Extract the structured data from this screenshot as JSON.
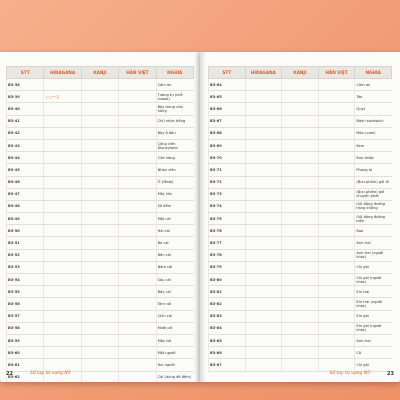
{
  "headers_left": [
    "STT",
    "HIRAGANA",
    "KANJI",
    "HÁN VIỆT",
    "NGHĨA"
  ],
  "headers_right": [
    "STT",
    "HIRAGANA",
    "KANJI",
    "HÁN VIỆT",
    "NGHĨA"
  ],
  "left_rows": [
    {
      "id": "B3-38",
      "hira": "",
      "kanji": "",
      "han": "",
      "vi": "Cảm ơn"
    },
    {
      "id": "B3-39",
      "hira": "ジュース",
      "kanji": "",
      "han": "",
      "vi": "Tương tự (chỗ coooo)"
    },
    {
      "id": "B3-40",
      "hira": "",
      "kanji": "",
      "han": "",
      "vi": "Bây trong cửa hàng"
    },
    {
      "id": "B3-41",
      "hira": "",
      "kanji": "",
      "han": "",
      "vi": "Chủ nhân tiếng"
    },
    {
      "id": "B3-42",
      "hira": "",
      "kanji": "",
      "han": "",
      "vi": "Bây ở đâu"
    },
    {
      "id": "B3-43",
      "hira": "",
      "kanji": "",
      "han": "",
      "vi": "Công viên Disneyland"
    },
    {
      "id": "B3-44",
      "hira": "",
      "kanji": "",
      "han": "",
      "vi": "Cửa hàng"
    },
    {
      "id": "B3-45",
      "hira": "",
      "kanji": "",
      "han": "",
      "vi": "Nhận viên"
    },
    {
      "id": "B3-46",
      "hira": "",
      "kanji": "",
      "han": "",
      "vi": "Ở (Nhật)"
    },
    {
      "id": "B3-47",
      "hira": "",
      "kanji": "",
      "han": "",
      "vi": "Mời, tốn"
    },
    {
      "id": "B3-48",
      "hira": "",
      "kanji": "",
      "han": "",
      "vi": "Số đếm"
    },
    {
      "id": "B3-49",
      "hira": "",
      "kanji": "",
      "han": "",
      "vi": "Một cái"
    },
    {
      "id": "B3-50",
      "hira": "",
      "kanji": "",
      "han": "",
      "vi": "Hai cái"
    },
    {
      "id": "B3-51",
      "hira": "",
      "kanji": "",
      "han": "",
      "vi": "Ba cái"
    },
    {
      "id": "B3-52",
      "hira": "",
      "kanji": "",
      "han": "",
      "vi": "Bốn cái"
    },
    {
      "id": "B3-53",
      "hira": "",
      "kanji": "",
      "han": "",
      "vi": "Năm cái"
    },
    {
      "id": "B3-54",
      "hira": "",
      "kanji": "",
      "han": "",
      "vi": "Sáu cái"
    },
    {
      "id": "B3-55",
      "hira": "",
      "kanji": "",
      "han": "",
      "vi": "Bảy cái"
    },
    {
      "id": "B3-56",
      "hira": "",
      "kanji": "",
      "han": "",
      "vi": "Tám cái"
    },
    {
      "id": "B3-57",
      "hira": "",
      "kanji": "",
      "han": "",
      "vi": "Chín cái"
    },
    {
      "id": "B3-58",
      "hira": "",
      "kanji": "",
      "han": "",
      "vi": "Mười cái"
    },
    {
      "id": "B3-59",
      "hira": "",
      "kanji": "",
      "han": "",
      "vi": "Mấy cái"
    },
    {
      "id": "B3-60",
      "hira": "",
      "kanji": "",
      "han": "",
      "vi": "Một người"
    },
    {
      "id": "B3-61",
      "hira": "",
      "kanji": "",
      "han": "",
      "vi": "Hai người"
    },
    {
      "id": "B3-62",
      "hira": "",
      "kanji": "",
      "han": "",
      "vi": "Cái (dùng để đếm)"
    },
    {
      "id": "B3-63",
      "hira": "",
      "kanji": "",
      "han": "",
      "vi": "Mấy người"
    }
  ],
  "right_rows": [
    {
      "id": "B3-64",
      "hira": "",
      "kanji": "",
      "han": "",
      "vi": "Cảm ơn"
    },
    {
      "id": "B3-65",
      "hira": "",
      "kanji": "",
      "han": "",
      "vi": "Táo"
    },
    {
      "id": "B3-66",
      "hira": "",
      "kanji": "",
      "han": "",
      "vi": "Quýt"
    },
    {
      "id": "B3-67",
      "hira": "",
      "kanji": "",
      "han": "",
      "vi": "Bánh sandwich"
    },
    {
      "id": "B3-68",
      "hira": "",
      "kanji": "",
      "han": "",
      "vi": "Món (cơm)"
    },
    {
      "id": "B3-69",
      "hira": "",
      "kanji": "",
      "han": "",
      "vi": "Kem"
    },
    {
      "id": "B3-70",
      "hira": "",
      "kanji": "",
      "han": "",
      "vi": "Bưu thiếp"
    },
    {
      "id": "B3-71",
      "hira": "",
      "kanji": "",
      "han": "",
      "vi": "Phong bì"
    },
    {
      "id": "B3-72",
      "hira": "",
      "kanji": "",
      "han": "",
      "vi": "(Bưu phẩm) gửi đi"
    },
    {
      "id": "B3-73",
      "hira": "",
      "kanji": "",
      "han": "",
      "vi": "(Bưu phẩm) gửi chuyển phát"
    },
    {
      "id": "B3-74",
      "hira": "",
      "kanji": "",
      "han": "",
      "vi": "Gửi bằng đường hàng không"
    },
    {
      "id": "B3-75",
      "hira": "",
      "kanji": "",
      "han": "",
      "vi": "Gửi bằng đường biển"
    },
    {
      "id": "B3-76",
      "hira": "",
      "kanji": "",
      "han": "",
      "vi": "Bao"
    },
    {
      "id": "B3-77",
      "hira": "",
      "kanji": "",
      "han": "",
      "vi": "Anh trai"
    },
    {
      "id": "B3-78",
      "hira": "",
      "kanji": "",
      "han": "",
      "vi": "Anh trai (người khác)"
    },
    {
      "id": "B3-79",
      "hira": "",
      "kanji": "",
      "han": "",
      "vi": "Chị gái"
    },
    {
      "id": "B3-80",
      "hira": "",
      "kanji": "",
      "han": "",
      "vi": "Chị gái (người khác)"
    },
    {
      "id": "B3-81",
      "hira": "",
      "kanji": "",
      "han": "",
      "vi": "Em trai"
    },
    {
      "id": "B3-82",
      "hira": "",
      "kanji": "",
      "han": "",
      "vi": "Em trai (người khác)"
    },
    {
      "id": "B3-83",
      "hira": "",
      "kanji": "",
      "han": "",
      "vi": "Em gái"
    },
    {
      "id": "B3-84",
      "hira": "",
      "kanji": "",
      "han": "",
      "vi": "Em gái (người khác)"
    },
    {
      "id": "B3-85",
      "hira": "",
      "kanji": "",
      "han": "",
      "vi": "Anh trai"
    },
    {
      "id": "B3-86",
      "hira": "",
      "kanji": "",
      "han": "",
      "vi": "Cô"
    },
    {
      "id": "B3-87",
      "hira": "",
      "kanji": "",
      "han": "",
      "vi": "Chị gái"
    }
  ],
  "footer_left": "Sổ tay từ vựng N5",
  "footer_right": "Sổ tay từ vựng N5",
  "page_left": "22",
  "page_right": "23"
}
